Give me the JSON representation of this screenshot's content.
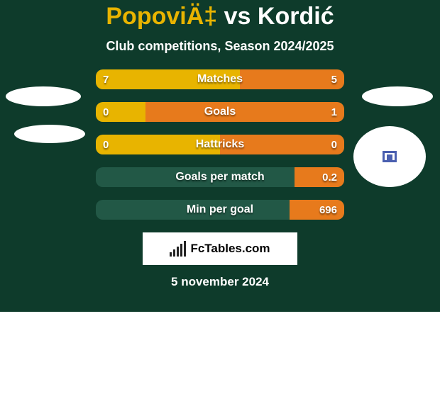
{
  "background_color": "#0e3b2b",
  "title": {
    "player1": "PopoviÄ‡",
    "vs": "vs",
    "player2": "Kordić",
    "color1": "#e8b400",
    "color2": "#ffffff"
  },
  "subtitle": "Club competitions, Season 2024/2025",
  "logo_text": "FcTables.com",
  "date": "5 november 2024",
  "row_bg": "#225846",
  "left_color": "#e8b400",
  "right_color": "#e77a1c",
  "rows": [
    {
      "label": "Matches",
      "left": "7",
      "right": "5",
      "left_pct": 58,
      "right_pct": 42
    },
    {
      "label": "Goals",
      "left": "0",
      "right": "1",
      "left_pct": 20,
      "right_pct": 80
    },
    {
      "label": "Hattricks",
      "left": "0",
      "right": "0",
      "left_pct": 50,
      "right_pct": 50
    },
    {
      "label": "Goals per match",
      "left": "",
      "right": "0.2",
      "left_pct": 0,
      "right_pct": 20
    },
    {
      "label": "Min per goal",
      "left": "",
      "right": "696",
      "left_pct": 0,
      "right_pct": 22
    }
  ]
}
